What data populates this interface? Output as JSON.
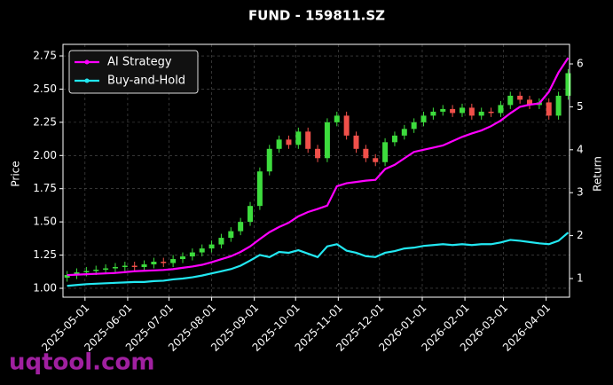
{
  "chart_data": {
    "type": "candlestick",
    "title": "FUND - 159811.SZ",
    "ylabel": "Price",
    "y2label": "Return",
    "x": [
      "2025-04-18",
      "2025-04-25",
      "2025-05-02",
      "2025-05-09",
      "2025-05-16",
      "2025-05-23",
      "2025-05-30",
      "2025-06-06",
      "2025-06-13",
      "2025-06-20",
      "2025-06-27",
      "2025-07-04",
      "2025-07-11",
      "2025-07-18",
      "2025-07-25",
      "2025-08-01",
      "2025-08-08",
      "2025-08-15",
      "2025-08-22",
      "2025-08-29",
      "2025-09-05",
      "2025-09-12",
      "2025-09-19",
      "2025-09-26",
      "2025-10-03",
      "2025-10-10",
      "2025-10-17",
      "2025-10-24",
      "2025-10-31",
      "2025-11-07",
      "2025-11-14",
      "2025-11-21",
      "2025-11-28",
      "2025-12-05",
      "2025-12-12",
      "2025-12-19",
      "2025-12-26",
      "2026-01-02",
      "2026-01-09",
      "2026-01-16",
      "2026-01-23",
      "2026-01-30",
      "2026-02-06",
      "2026-02-13",
      "2026-02-20",
      "2026-02-27",
      "2026-03-06",
      "2026-03-13",
      "2026-03-20",
      "2026-03-27",
      "2026-04-03",
      "2026-04-10",
      "2026-04-17"
    ],
    "open": [
      1.08,
      1.1,
      1.12,
      1.13,
      1.14,
      1.15,
      1.16,
      1.17,
      1.16,
      1.18,
      1.2,
      1.19,
      1.22,
      1.24,
      1.27,
      1.3,
      1.33,
      1.38,
      1.43,
      1.5,
      1.62,
      1.88,
      2.05,
      2.12,
      2.08,
      2.18,
      2.05,
      1.98,
      2.25,
      2.3,
      2.15,
      2.05,
      1.98,
      1.95,
      2.1,
      2.15,
      2.2,
      2.25,
      2.3,
      2.33,
      2.35,
      2.32,
      2.36,
      2.3,
      2.33,
      2.32,
      2.38,
      2.45,
      2.42,
      2.38,
      2.4,
      2.3,
      2.45
    ],
    "high": [
      1.13,
      1.15,
      1.16,
      1.17,
      1.18,
      1.19,
      1.2,
      1.2,
      1.21,
      1.23,
      1.23,
      1.25,
      1.27,
      1.3,
      1.33,
      1.36,
      1.41,
      1.46,
      1.53,
      1.65,
      1.91,
      2.08,
      2.15,
      2.15,
      2.21,
      2.21,
      2.08,
      2.28,
      2.33,
      2.33,
      2.18,
      2.08,
      2.01,
      2.13,
      2.18,
      2.23,
      2.28,
      2.33,
      2.36,
      2.38,
      2.38,
      2.39,
      2.39,
      2.36,
      2.36,
      2.41,
      2.48,
      2.48,
      2.45,
      2.43,
      2.43,
      2.48,
      2.65
    ],
    "low": [
      1.05,
      1.07,
      1.09,
      1.1,
      1.11,
      1.12,
      1.13,
      1.13,
      1.13,
      1.15,
      1.16,
      1.16,
      1.19,
      1.21,
      1.24,
      1.27,
      1.3,
      1.35,
      1.4,
      1.47,
      1.59,
      1.85,
      2.02,
      2.05,
      2.05,
      2.02,
      1.95,
      1.95,
      2.22,
      2.12,
      2.02,
      1.95,
      1.92,
      1.92,
      2.07,
      2.12,
      2.17,
      2.22,
      2.27,
      2.3,
      2.29,
      2.29,
      2.27,
      2.27,
      2.29,
      2.29,
      2.35,
      2.39,
      2.35,
      2.35,
      2.27,
      2.27,
      2.42
    ],
    "close": [
      1.1,
      1.12,
      1.13,
      1.14,
      1.15,
      1.16,
      1.17,
      1.16,
      1.18,
      1.2,
      1.19,
      1.22,
      1.24,
      1.27,
      1.3,
      1.33,
      1.38,
      1.43,
      1.5,
      1.62,
      1.88,
      2.05,
      2.12,
      2.08,
      2.18,
      2.05,
      1.98,
      2.25,
      2.3,
      2.15,
      2.05,
      1.98,
      1.95,
      2.1,
      2.15,
      2.2,
      2.25,
      2.3,
      2.33,
      2.35,
      2.32,
      2.36,
      2.3,
      2.33,
      2.32,
      2.38,
      2.45,
      2.42,
      2.38,
      2.4,
      2.3,
      2.45,
      2.62
    ],
    "up_color": "#3ddc3d",
    "down_color": "#f0504a",
    "series": [
      {
        "name": "AI Strategy",
        "color": "#ff00ff",
        "axis": "y2",
        "values": [
          1.08,
          1.09,
          1.1,
          1.11,
          1.12,
          1.13,
          1.15,
          1.17,
          1.18,
          1.19,
          1.2,
          1.22,
          1.25,
          1.28,
          1.32,
          1.38,
          1.45,
          1.52,
          1.62,
          1.75,
          1.92,
          2.08,
          2.2,
          2.3,
          2.45,
          2.55,
          2.62,
          2.7,
          3.15,
          3.22,
          3.25,
          3.28,
          3.3,
          3.55,
          3.65,
          3.8,
          3.95,
          4.0,
          4.05,
          4.1,
          4.2,
          4.3,
          4.38,
          4.45,
          4.55,
          4.68,
          4.85,
          5.0,
          5.05,
          5.08,
          5.35,
          5.8,
          6.14
        ]
      },
      {
        "name": "Buy-and-Hold",
        "color": "#22e8f2",
        "axis": "y2",
        "values": [
          0.83,
          0.85,
          0.87,
          0.88,
          0.89,
          0.9,
          0.91,
          0.92,
          0.92,
          0.94,
          0.95,
          0.98,
          1.0,
          1.03,
          1.07,
          1.12,
          1.17,
          1.22,
          1.3,
          1.42,
          1.55,
          1.5,
          1.62,
          1.6,
          1.66,
          1.58,
          1.5,
          1.75,
          1.8,
          1.65,
          1.6,
          1.52,
          1.5,
          1.6,
          1.64,
          1.7,
          1.72,
          1.76,
          1.78,
          1.8,
          1.78,
          1.8,
          1.78,
          1.8,
          1.8,
          1.84,
          1.9,
          1.88,
          1.85,
          1.82,
          1.8,
          1.88,
          2.07
        ]
      }
    ],
    "xlim": [
      "2025-04-15",
      "2026-04-18"
    ],
    "xticks": [
      "2025-05-01",
      "2025-06-01",
      "2025-07-01",
      "2025-08-01",
      "2025-09-01",
      "2025-10-01",
      "2025-11-01",
      "2025-12-01",
      "2026-01-01",
      "2026-02-01",
      "2026-03-01",
      "2026-04-01"
    ],
    "ylim": [
      0.933,
      2.837
    ],
    "yticks": [
      {
        "value": 1,
        "label": "1.00"
      },
      1.25,
      {
        "value": 1.5,
        "label": "1.50"
      },
      1.75,
      {
        "value": 2,
        "label": "2.00"
      },
      2.25,
      {
        "value": 2.5,
        "label": "2.50"
      },
      2.75
    ],
    "y2lim": [
      0.566,
      6.455
    ],
    "y2ticks": [
      1,
      2,
      3,
      4,
      5,
      6
    ],
    "grid": true,
    "legend": "upper left"
  },
  "watermark": "uqtool.com"
}
